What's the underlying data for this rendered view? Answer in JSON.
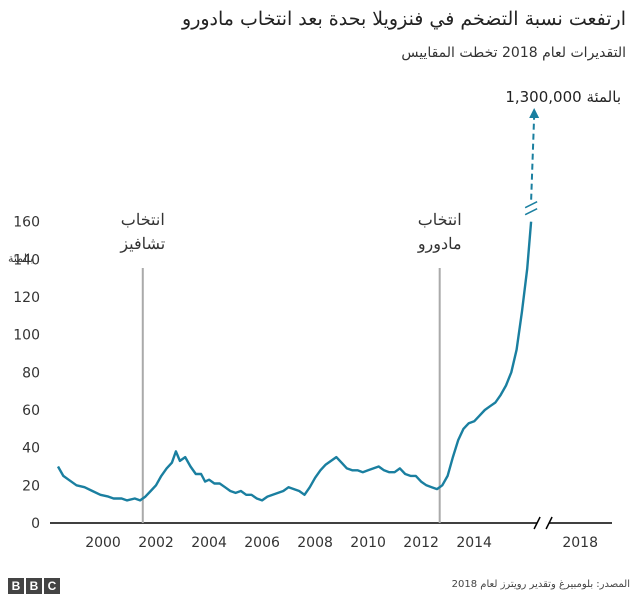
{
  "header": {
    "title": "ارتفعت نسبة التضخم في فنزويلا بحدة بعد انتخاب مادورو",
    "subtitle": "التقديرات لعام 2018 تخطت المقاييس"
  },
  "footer": {
    "logo_letters": [
      "B",
      "B",
      "C"
    ],
    "source": "المصدر: بلومبيرغ وتقدير رويترز لعام 2018"
  },
  "colors": {
    "line": "#1a7fa0",
    "event_line": "#aaaaaa",
    "axis": "#000000",
    "text": "#333333"
  },
  "chart_data": {
    "type": "line",
    "title": "ارتفعت نسبة التضخم في فنزويلا بحدة بعد انتخاب مادورو",
    "subtitle": "التقديرات لعام 2018 تخطت المقاييس",
    "ylabel": "بالمئة",
    "ylim": [
      0,
      165
    ],
    "xlim": [
      1998,
      2019.2
    ],
    "yticks": [
      "0",
      "20",
      "40",
      "60",
      "80",
      "100",
      "120",
      "140",
      "160"
    ],
    "xticks": [
      "2000",
      "2002",
      "2004",
      "2006",
      "2008",
      "2010",
      "2012",
      "2014",
      "2018"
    ],
    "axis_break": true,
    "grid": false,
    "series": [
      {
        "values": [
          [
            1998.3,
            30
          ],
          [
            1998.5,
            25
          ],
          [
            1998.7,
            23
          ],
          [
            1999.0,
            20
          ],
          [
            1999.3,
            19
          ],
          [
            1999.6,
            17
          ],
          [
            1999.9,
            15
          ],
          [
            2000.2,
            14
          ],
          [
            2000.4,
            13
          ],
          [
            2000.7,
            13
          ],
          [
            2000.9,
            12
          ],
          [
            2001.2,
            13
          ],
          [
            2001.4,
            12
          ],
          [
            2001.6,
            14
          ],
          [
            2001.8,
            17
          ],
          [
            2002.0,
            20
          ],
          [
            2002.2,
            25
          ],
          [
            2002.4,
            29
          ],
          [
            2002.6,
            32
          ],
          [
            2002.75,
            38
          ],
          [
            2002.9,
            33
          ],
          [
            2003.1,
            35
          ],
          [
            2003.3,
            30
          ],
          [
            2003.5,
            26
          ],
          [
            2003.7,
            26
          ],
          [
            2003.85,
            22
          ],
          [
            2004.0,
            23
          ],
          [
            2004.2,
            21
          ],
          [
            2004.4,
            21
          ],
          [
            2004.6,
            19
          ],
          [
            2004.8,
            17
          ],
          [
            2005.0,
            16
          ],
          [
            2005.2,
            17
          ],
          [
            2005.4,
            15
          ],
          [
            2005.6,
            15
          ],
          [
            2005.8,
            13
          ],
          [
            2006.0,
            12
          ],
          [
            2006.2,
            14
          ],
          [
            2006.4,
            15
          ],
          [
            2006.6,
            16
          ],
          [
            2006.8,
            17
          ],
          [
            2007.0,
            19
          ],
          [
            2007.2,
            18
          ],
          [
            2007.4,
            17
          ],
          [
            2007.6,
            15
          ],
          [
            2007.8,
            19
          ],
          [
            2008.0,
            24
          ],
          [
            2008.2,
            28
          ],
          [
            2008.4,
            31
          ],
          [
            2008.6,
            33
          ],
          [
            2008.8,
            35
          ],
          [
            2009.0,
            32
          ],
          [
            2009.2,
            29
          ],
          [
            2009.4,
            28
          ],
          [
            2009.6,
            28
          ],
          [
            2009.8,
            27
          ],
          [
            2010.0,
            28
          ],
          [
            2010.2,
            29
          ],
          [
            2010.4,
            30
          ],
          [
            2010.6,
            28
          ],
          [
            2010.8,
            27
          ],
          [
            2011.0,
            27
          ],
          [
            2011.2,
            29
          ],
          [
            2011.4,
            26
          ],
          [
            2011.6,
            25
          ],
          [
            2011.8,
            25
          ],
          [
            2012.0,
            22
          ],
          [
            2012.2,
            20
          ],
          [
            2012.4,
            19
          ],
          [
            2012.6,
            18
          ],
          [
            2012.8,
            20
          ],
          [
            2013.0,
            25
          ],
          [
            2013.2,
            35
          ],
          [
            2013.4,
            44
          ],
          [
            2013.6,
            50
          ],
          [
            2013.8,
            53
          ],
          [
            2014.0,
            54
          ],
          [
            2014.2,
            57
          ],
          [
            2014.4,
            60
          ],
          [
            2014.6,
            62
          ],
          [
            2014.8,
            64
          ],
          [
            2015.0,
            68
          ],
          [
            2015.2,
            73
          ],
          [
            2015.4,
            80
          ],
          [
            2015.6,
            92
          ],
          [
            2015.8,
            112
          ],
          [
            2016.0,
            135
          ],
          [
            2016.15,
            160
          ]
        ]
      }
    ],
    "extension": {
      "year": 2018,
      "label": "1,300,000 بالمئة",
      "style": "dashed-arrow"
    },
    "events": [
      {
        "year": 2001.5,
        "label_lines": [
          "انتخاب",
          "تشافيز"
        ]
      },
      {
        "year": 2012.7,
        "label_lines": [
          "انتخاب",
          "مادورو"
        ]
      }
    ]
  }
}
